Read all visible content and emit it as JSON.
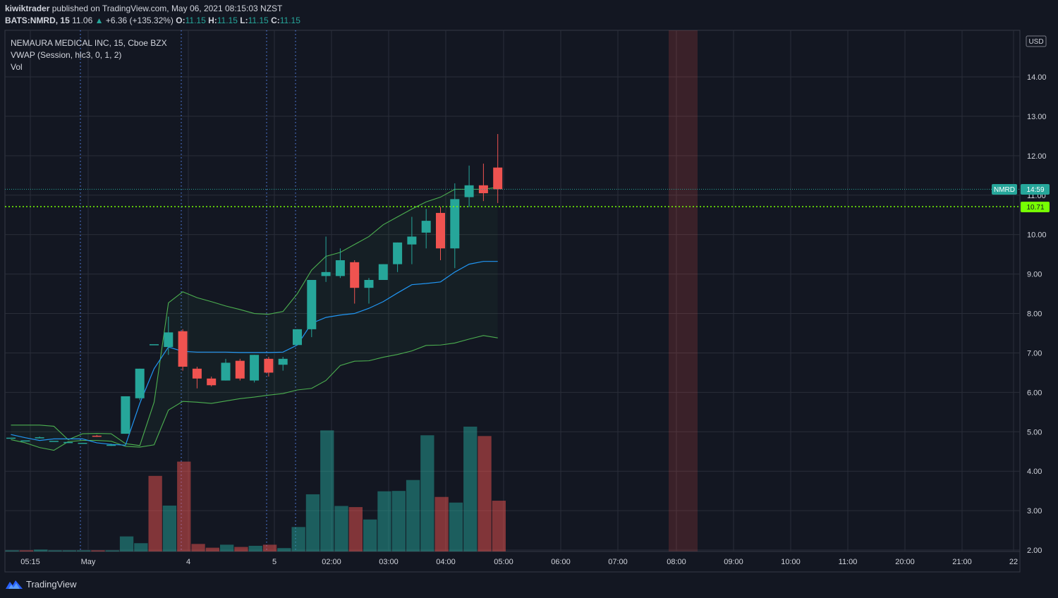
{
  "header": {
    "author": "kiwiktrader",
    "published_text": "published on TradingView.com, May 06, 2021 08:15:03 NZST",
    "symbol_line": "BATS:NMRD, 15",
    "last": "11.06",
    "change": "+6.36 (+135.32%)",
    "o_label": "O:",
    "o": "11.15",
    "h_label": "H:",
    "h": "11.15",
    "l_label": "L:",
    "l": "11.15",
    "c_label": "C:",
    "c": "11.15"
  },
  "legend": {
    "title": "NEMAURA MEDICAL INC, 15, Cboe BZX",
    "vwap": "VWAP (Session, hlc3, 0, 1, 2)",
    "vol": "Vol"
  },
  "price_scale": {
    "currency": "USD",
    "ticks": [
      "14.00",
      "13.00",
      "12.00",
      "11.00",
      "10.00",
      "9.00",
      "8.00",
      "7.00",
      "6.00",
      "5.00",
      "4.00",
      "3.00",
      "2.00"
    ]
  },
  "time_axis": [
    "05:15",
    "May",
    "4",
    "5",
    "02:00",
    "03:00",
    "04:00",
    "05:00",
    "06:00",
    "07:00",
    "08:00",
    "09:00",
    "10:00",
    "11:00",
    "20:00",
    "21:00",
    "22"
  ],
  "badges": {
    "symbol": "NMRD",
    "countdown": "14:59",
    "level": "10.71"
  },
  "colors": {
    "background": "#131722",
    "up": "#26a69a",
    "down": "#ef5350",
    "vwap": "#2196f3",
    "bands": "#4caf50",
    "level_line": "#76ff03",
    "highlight": "#ef5350"
  },
  "footer": {
    "brand": "TradingView"
  },
  "chart_data": {
    "type": "candlestick",
    "title": "NEMAURA MEDICAL INC, 15, Cboe BZX",
    "ylim": [
      1.95,
      15.0
    ],
    "candles": [
      {
        "o": 4.85,
        "h": 4.85,
        "l": 4.85,
        "c": 4.85
      },
      {
        "o": 4.78,
        "h": 4.78,
        "l": 4.78,
        "c": 4.78
      },
      {
        "o": 4.86,
        "h": 4.88,
        "l": 4.84,
        "c": 4.86
      },
      {
        "o": 4.77,
        "h": 4.77,
        "l": 4.77,
        "c": 4.77
      },
      {
        "o": 4.74,
        "h": 4.74,
        "l": 4.74,
        "c": 4.74
      },
      {
        "o": 4.72,
        "h": 4.72,
        "l": 4.72,
        "c": 4.72
      },
      {
        "o": 4.9,
        "h": 4.92,
        "l": 4.87,
        "c": 4.88
      },
      {
        "o": 4.67,
        "h": 4.7,
        "l": 4.64,
        "c": 4.67
      },
      {
        "o": 4.95,
        "h": 5.9,
        "l": 4.95,
        "c": 5.9
      },
      {
        "o": 5.85,
        "h": 6.6,
        "l": 5.8,
        "c": 6.6
      },
      {
        "o": 7.22,
        "h": 7.22,
        "l": 7.22,
        "c": 7.22
      },
      {
        "o": 7.15,
        "h": 7.92,
        "l": 6.95,
        "c": 7.52
      },
      {
        "o": 7.55,
        "h": 7.6,
        "l": 6.55,
        "c": 6.65
      },
      {
        "o": 6.6,
        "h": 6.65,
        "l": 6.1,
        "c": 6.35
      },
      {
        "o": 6.35,
        "h": 6.4,
        "l": 6.15,
        "c": 6.18
      },
      {
        "o": 6.3,
        "h": 6.85,
        "l": 6.3,
        "c": 6.75
      },
      {
        "o": 6.8,
        "h": 6.85,
        "l": 6.3,
        "c": 6.35
      },
      {
        "o": 6.3,
        "h": 6.95,
        "l": 6.25,
        "c": 6.95
      },
      {
        "o": 6.85,
        "h": 6.9,
        "l": 6.4,
        "c": 6.5
      },
      {
        "o": 6.7,
        "h": 6.9,
        "l": 6.55,
        "c": 6.85
      },
      {
        "o": 7.2,
        "h": 7.6,
        "l": 7.2,
        "c": 7.6
      },
      {
        "o": 7.6,
        "h": 8.85,
        "l": 7.4,
        "c": 8.85
      },
      {
        "o": 8.95,
        "h": 9.95,
        "l": 8.8,
        "c": 9.05
      },
      {
        "o": 8.95,
        "h": 9.65,
        "l": 8.9,
        "c": 9.35
      },
      {
        "o": 9.3,
        "h": 9.35,
        "l": 8.25,
        "c": 8.65
      },
      {
        "o": 8.65,
        "h": 8.9,
        "l": 8.25,
        "c": 8.85
      },
      {
        "o": 8.85,
        "h": 9.25,
        "l": 8.85,
        "c": 9.25
      },
      {
        "o": 9.25,
        "h": 9.8,
        "l": 9.05,
        "c": 9.8
      },
      {
        "o": 9.75,
        "h": 10.45,
        "l": 9.25,
        "c": 9.95
      },
      {
        "o": 10.05,
        "h": 10.65,
        "l": 9.65,
        "c": 10.35
      },
      {
        "o": 10.55,
        "h": 10.7,
        "l": 9.35,
        "c": 9.65
      },
      {
        "o": 9.65,
        "h": 11.3,
        "l": 9.15,
        "c": 10.9
      },
      {
        "o": 10.95,
        "h": 11.75,
        "l": 10.7,
        "c": 11.25
      },
      {
        "o": 11.25,
        "h": 11.8,
        "l": 10.85,
        "c": 11.05
      },
      {
        "o": 11.7,
        "h": 12.55,
        "l": 10.8,
        "c": 11.15
      }
    ],
    "volume_scale": 5.0,
    "volume": [
      {
        "v": 0.02,
        "dir": "up"
      },
      {
        "v": 0.01,
        "dir": "down"
      },
      {
        "v": 0.05,
        "dir": "up"
      },
      {
        "v": 0.02,
        "dir": "up"
      },
      {
        "v": 0.0,
        "dir": "up"
      },
      {
        "v": 0.0,
        "dir": "up"
      },
      {
        "v": 0.02,
        "dir": "down"
      },
      {
        "v": 0.01,
        "dir": "up"
      },
      {
        "v": 0.4,
        "dir": "up"
      },
      {
        "v": 0.22,
        "dir": "up"
      },
      {
        "v": 2.01,
        "dir": "down"
      },
      {
        "v": 1.22,
        "dir": "up"
      },
      {
        "v": 2.39,
        "dir": "down"
      },
      {
        "v": 0.2,
        "dir": "down"
      },
      {
        "v": 0.1,
        "dir": "down"
      },
      {
        "v": 0.18,
        "dir": "up"
      },
      {
        "v": 0.12,
        "dir": "down"
      },
      {
        "v": 0.15,
        "dir": "up"
      },
      {
        "v": 0.18,
        "dir": "down"
      },
      {
        "v": 0.09,
        "dir": "up"
      },
      {
        "v": 0.65,
        "dir": "up"
      },
      {
        "v": 1.52,
        "dir": "up"
      },
      {
        "v": 3.22,
        "dir": "up"
      },
      {
        "v": 1.21,
        "dir": "up"
      },
      {
        "v": 1.18,
        "dir": "down"
      },
      {
        "v": 0.85,
        "dir": "up"
      },
      {
        "v": 1.6,
        "dir": "up"
      },
      {
        "v": 1.61,
        "dir": "up"
      },
      {
        "v": 1.9,
        "dir": "up"
      },
      {
        "v": 3.09,
        "dir": "up"
      },
      {
        "v": 1.45,
        "dir": "down"
      },
      {
        "v": 1.3,
        "dir": "up"
      },
      {
        "v": 3.32,
        "dir": "up"
      },
      {
        "v": 3.07,
        "dir": "down"
      },
      {
        "v": 1.35,
        "dir": "down"
      }
    ],
    "vwap": [
      4.93,
      4.85,
      4.78,
      4.82,
      4.82,
      4.82,
      4.72,
      4.68,
      4.66,
      5.72,
      6.6,
      7.15,
      7.04,
      7.02,
      7.02,
      7.02,
      7.01,
      7.01,
      7.01,
      7.02,
      7.2,
      7.75,
      7.9,
      7.96,
      8.0,
      8.13,
      8.3,
      8.52,
      8.73,
      8.76,
      8.8,
      9.05,
      9.25,
      9.32,
      9.32
    ],
    "upper_band": [
      5.17,
      5.17,
      5.17,
      5.14,
      4.8,
      4.95,
      4.96,
      4.95,
      4.7,
      4.65,
      5.75,
      8.27,
      8.55,
      8.4,
      8.3,
      8.19,
      8.1,
      8.0,
      7.98,
      8.05,
      8.5,
      9.1,
      9.45,
      9.55,
      9.75,
      9.95,
      10.25,
      10.45,
      10.65,
      10.83,
      10.95,
      11.15,
      11.15,
      11.15,
      11.2
    ],
    "lower_band": [
      4.8,
      4.72,
      4.6,
      4.53,
      4.75,
      4.78,
      4.78,
      4.76,
      4.63,
      4.61,
      4.67,
      5.55,
      5.77,
      5.75,
      5.72,
      5.78,
      5.84,
      5.88,
      5.93,
      5.97,
      6.06,
      6.1,
      6.3,
      6.68,
      6.79,
      6.8,
      6.89,
      6.96,
      7.05,
      7.19,
      7.2,
      7.25,
      7.35,
      7.44,
      7.38
    ],
    "last_price": 11.15,
    "level_line": 10.71
  }
}
